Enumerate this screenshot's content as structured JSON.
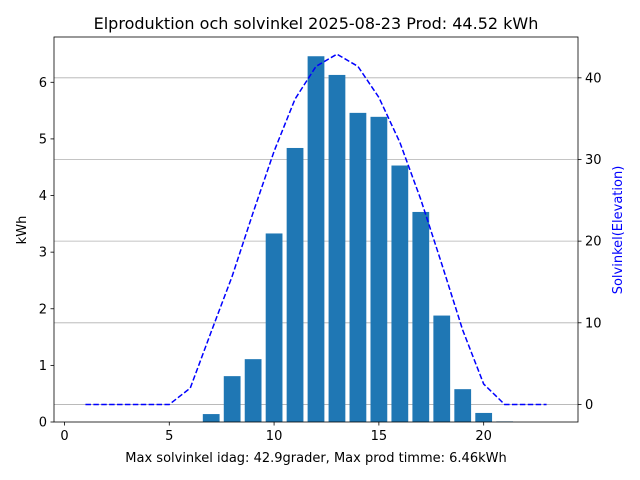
{
  "chart_data": {
    "type": "bar",
    "title": "Elproduktion och solvinkel 2025-08-23 Prod: 44.52 kWh",
    "xlabel": "Max solvinkel idag: 42.9grader, Max prod timme: 6.46kWh",
    "ylabel": "kWh",
    "ylabel_right": "Solvinkel(Elevation)",
    "xlim": [
      -0.5,
      24.5
    ],
    "ylim": [
      0,
      6.8
    ],
    "ylim_right": [
      -2.15,
      45.0
    ],
    "xticks": [
      0,
      5,
      10,
      15,
      20
    ],
    "yticks": [
      0,
      1,
      2,
      3,
      4,
      5,
      6
    ],
    "yticks_right": [
      0,
      10,
      20,
      30,
      40
    ],
    "grid": "horizontal, right-axis ticks",
    "colors": {
      "bars": "#1f77b4",
      "line": "#0000ff"
    },
    "series": [
      {
        "type": "bar",
        "x": [
          0,
          1,
          2,
          3,
          4,
          5,
          6,
          7,
          8,
          9,
          10,
          11,
          12,
          13,
          14,
          15,
          16,
          17,
          18,
          19,
          20,
          21,
          22,
          23
        ],
        "values": [
          0,
          0,
          0,
          0,
          0,
          0,
          0,
          0.14,
          0.81,
          1.11,
          3.33,
          4.84,
          6.46,
          6.13,
          5.46,
          5.39,
          4.53,
          3.71,
          1.88,
          0.58,
          0.16,
          0.01,
          0,
          0
        ]
      },
      {
        "type": "line",
        "style": "dashed",
        "axis": "right",
        "x": [
          1,
          2,
          3,
          4,
          5,
          6,
          7,
          8,
          9,
          10,
          11,
          12,
          13,
          14,
          15,
          16,
          17,
          18,
          19,
          20,
          21,
          22,
          23
        ],
        "values": [
          0,
          0,
          0,
          0,
          0,
          2,
          8.9,
          15.7,
          23.5,
          31,
          37.4,
          41.4,
          42.9,
          41.4,
          37.6,
          32.1,
          25.1,
          17.2,
          9.1,
          2.5,
          0,
          0,
          0
        ]
      }
    ]
  }
}
